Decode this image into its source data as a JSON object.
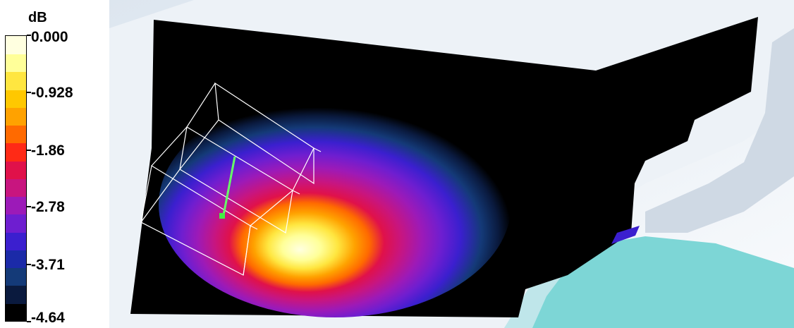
{
  "legend": {
    "title": "dB",
    "ticks": [
      "0.000",
      "-0.928",
      "-1.86",
      "-2.78",
      "-3.71",
      "-4.64"
    ],
    "tick_values": [
      0.0,
      -0.928,
      -1.86,
      -2.78,
      -3.71,
      -4.64
    ],
    "colors": [
      "#000000",
      "#0a1a3e",
      "#143a78",
      "#1b2aa8",
      "#3b1fcf",
      "#6e1ed0",
      "#9c1ab8",
      "#c8157f",
      "#e0114a",
      "#ff2a16",
      "#ff6a00",
      "#ffa200",
      "#ffc800",
      "#ffe640",
      "#ffff99",
      "#ffffe0"
    ]
  },
  "scene": {
    "background_color": "#dfe6ee",
    "wall_color": "#f6f8fb",
    "floor_color": "#7dd6d6",
    "plane_color": "#000000"
  }
}
